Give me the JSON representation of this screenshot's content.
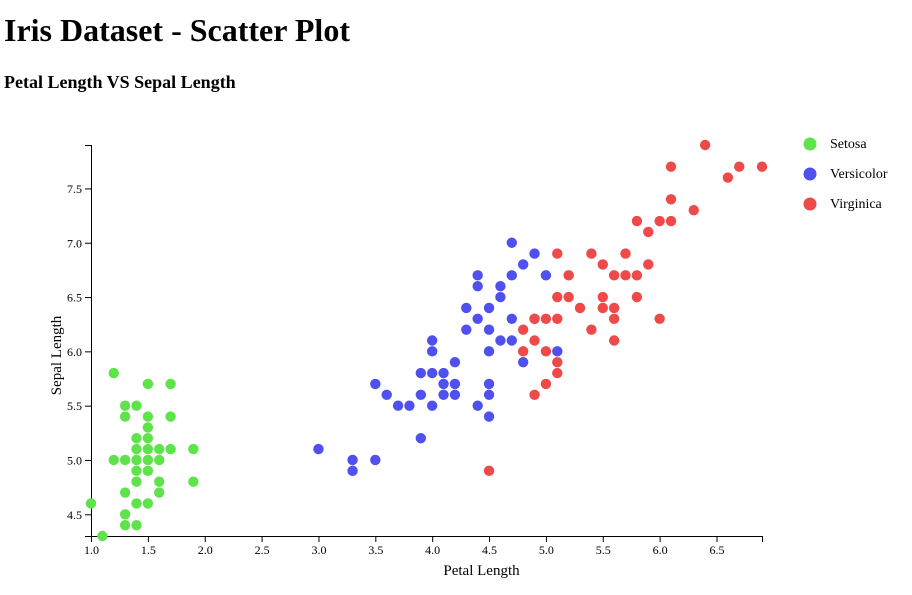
{
  "page": {
    "title": "Iris Dataset - Scatter Plot",
    "subtitle": "Petal Length VS Sepal Length"
  },
  "colors": {
    "Setosa": "#5ee34a",
    "Versicolor": "#5050ee",
    "Virginica": "#ee4a4a"
  },
  "chart_data": {
    "type": "scatter",
    "title": "",
    "xlabel": "Petal Length",
    "ylabel": "Sepal Length",
    "xlim": [
      1.0,
      6.9
    ],
    "ylim": [
      4.3,
      7.9
    ],
    "x_ticks": [
      "1.0",
      "1.5",
      "2.0",
      "2.5",
      "3.0",
      "3.5",
      "4.0",
      "4.5",
      "5.0",
      "5.5",
      "6.0",
      "6.5"
    ],
    "y_ticks": [
      "4.5",
      "5.0",
      "5.5",
      "6.0",
      "6.5",
      "7.0",
      "7.5"
    ],
    "grid": false,
    "legend": "top-right",
    "series": [
      {
        "name": "Setosa",
        "points": [
          [
            1.0,
            4.6
          ],
          [
            1.1,
            4.3
          ],
          [
            1.2,
            5.8
          ],
          [
            1.2,
            5.0
          ],
          [
            1.3,
            5.5
          ],
          [
            1.3,
            5.4
          ],
          [
            1.3,
            5.0
          ],
          [
            1.3,
            4.7
          ],
          [
            1.3,
            4.5
          ],
          [
            1.3,
            4.4
          ],
          [
            1.4,
            5.5
          ],
          [
            1.4,
            5.2
          ],
          [
            1.4,
            5.1
          ],
          [
            1.4,
            5.0
          ],
          [
            1.4,
            4.9
          ],
          [
            1.4,
            4.8
          ],
          [
            1.4,
            4.6
          ],
          [
            1.4,
            4.4
          ],
          [
            1.5,
            5.7
          ],
          [
            1.5,
            5.4
          ],
          [
            1.5,
            5.3
          ],
          [
            1.5,
            5.2
          ],
          [
            1.5,
            5.1
          ],
          [
            1.5,
            5.0
          ],
          [
            1.5,
            4.9
          ],
          [
            1.5,
            4.6
          ],
          [
            1.6,
            5.1
          ],
          [
            1.6,
            5.0
          ],
          [
            1.6,
            4.8
          ],
          [
            1.6,
            4.7
          ],
          [
            1.7,
            5.7
          ],
          [
            1.7,
            5.4
          ],
          [
            1.7,
            5.1
          ],
          [
            1.9,
            5.1
          ],
          [
            1.9,
            4.8
          ]
        ]
      },
      {
        "name": "Versicolor",
        "points": [
          [
            3.0,
            5.1
          ],
          [
            3.3,
            5.0
          ],
          [
            3.3,
            4.9
          ],
          [
            3.5,
            5.7
          ],
          [
            3.5,
            5.0
          ],
          [
            3.6,
            5.6
          ],
          [
            3.7,
            5.5
          ],
          [
            3.8,
            5.5
          ],
          [
            3.9,
            5.8
          ],
          [
            3.9,
            5.6
          ],
          [
            3.9,
            5.2
          ],
          [
            4.0,
            6.1
          ],
          [
            4.0,
            6.0
          ],
          [
            4.0,
            5.8
          ],
          [
            4.0,
            5.5
          ],
          [
            4.1,
            5.8
          ],
          [
            4.1,
            5.7
          ],
          [
            4.1,
            5.6
          ],
          [
            4.2,
            5.9
          ],
          [
            4.2,
            5.7
          ],
          [
            4.2,
            5.6
          ],
          [
            4.3,
            6.4
          ],
          [
            4.3,
            6.2
          ],
          [
            4.4,
            6.7
          ],
          [
            4.4,
            6.6
          ],
          [
            4.4,
            6.3
          ],
          [
            4.4,
            5.5
          ],
          [
            4.5,
            6.4
          ],
          [
            4.5,
            6.2
          ],
          [
            4.5,
            6.0
          ],
          [
            4.5,
            5.7
          ],
          [
            4.5,
            5.6
          ],
          [
            4.5,
            5.4
          ],
          [
            4.6,
            6.6
          ],
          [
            4.6,
            6.5
          ],
          [
            4.6,
            6.1
          ],
          [
            4.7,
            7.0
          ],
          [
            4.7,
            6.7
          ],
          [
            4.7,
            6.3
          ],
          [
            4.7,
            6.1
          ],
          [
            4.8,
            6.8
          ],
          [
            4.8,
            5.9
          ],
          [
            4.9,
            6.9
          ],
          [
            4.9,
            6.3
          ],
          [
            5.0,
            6.7
          ],
          [
            5.1,
            6.0
          ]
        ]
      },
      {
        "name": "Virginica",
        "points": [
          [
            4.5,
            4.9
          ],
          [
            4.8,
            6.2
          ],
          [
            4.8,
            6.0
          ],
          [
            4.9,
            6.3
          ],
          [
            4.9,
            6.1
          ],
          [
            4.9,
            5.6
          ],
          [
            5.0,
            6.3
          ],
          [
            5.0,
            6.0
          ],
          [
            5.0,
            5.7
          ],
          [
            5.1,
            6.9
          ],
          [
            5.1,
            6.5
          ],
          [
            5.1,
            6.3
          ],
          [
            5.1,
            5.9
          ],
          [
            5.1,
            5.8
          ],
          [
            5.2,
            6.7
          ],
          [
            5.2,
            6.5
          ],
          [
            5.3,
            6.4
          ],
          [
            5.4,
            6.9
          ],
          [
            5.4,
            6.2
          ],
          [
            5.5,
            6.8
          ],
          [
            5.5,
            6.5
          ],
          [
            5.5,
            6.4
          ],
          [
            5.6,
            6.7
          ],
          [
            5.6,
            6.4
          ],
          [
            5.6,
            6.3
          ],
          [
            5.6,
            6.1
          ],
          [
            5.7,
            6.9
          ],
          [
            5.7,
            6.7
          ],
          [
            5.8,
            7.2
          ],
          [
            5.8,
            6.7
          ],
          [
            5.8,
            6.5
          ],
          [
            5.9,
            7.1
          ],
          [
            5.9,
            6.8
          ],
          [
            6.0,
            7.2
          ],
          [
            6.0,
            6.3
          ],
          [
            6.1,
            7.7
          ],
          [
            6.1,
            7.4
          ],
          [
            6.1,
            7.2
          ],
          [
            6.3,
            7.3
          ],
          [
            6.4,
            7.9
          ],
          [
            6.6,
            7.6
          ],
          [
            6.7,
            7.7
          ],
          [
            6.9,
            7.7
          ]
        ]
      }
    ]
  }
}
